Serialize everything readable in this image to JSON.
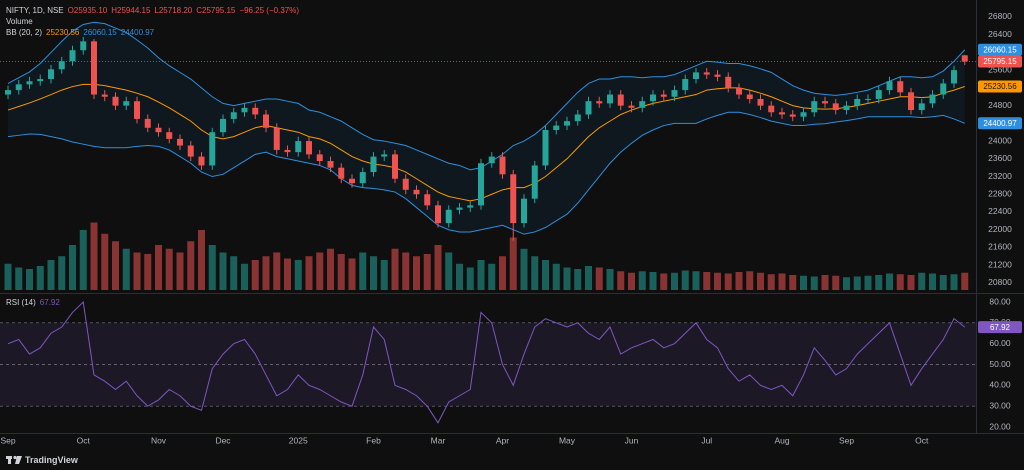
{
  "header": {
    "symbol": "NIFTY, 1D, NSE",
    "open": "O25935.10",
    "high": "H25944.15",
    "low": "L25718.20",
    "close": "C25795.15",
    "change": "−96.25 (−0.37%)",
    "footer": "TradingView"
  },
  "chart_data": {
    "type": "candlestick",
    "up_color": "#26a69a",
    "down_color": "#ef5350",
    "grid": false,
    "ylim": [
      20640,
      27070
    ],
    "yticks": [
      20800,
      21200,
      21600,
      22000,
      22400,
      22800,
      23200,
      23600,
      24000,
      24400,
      24800,
      25200,
      25600,
      26000,
      26400,
      26800
    ],
    "categories": [
      "Sep",
      null,
      null,
      null,
      null,
      null,
      null,
      "Oct",
      null,
      null,
      null,
      null,
      null,
      null,
      "Nov",
      null,
      null,
      null,
      null,
      null,
      "Dec",
      null,
      null,
      null,
      null,
      null,
      null,
      "2025",
      null,
      null,
      null,
      null,
      null,
      null,
      "Feb",
      null,
      null,
      null,
      null,
      null,
      "Mar",
      null,
      null,
      null,
      null,
      null,
      "Apr",
      null,
      null,
      null,
      null,
      null,
      "May",
      null,
      null,
      null,
      null,
      null,
      "Jun",
      null,
      null,
      null,
      null,
      null,
      null,
      "Jul",
      null,
      null,
      null,
      null,
      null,
      null,
      "Aug",
      null,
      null,
      null,
      null,
      null,
      "Sep",
      null,
      null,
      null,
      null,
      null,
      null,
      "Oct",
      null,
      null,
      null,
      null
    ],
    "open": [
      25050,
      25150,
      25280,
      25350,
      25400,
      25620,
      25800,
      26050,
      26250,
      25050,
      25000,
      24800,
      24900,
      24500,
      24300,
      24200,
      24050,
      23900,
      23650,
      23450,
      24200,
      24500,
      24650,
      24750,
      24600,
      24300,
      23800,
      23750,
      24000,
      23700,
      23550,
      23400,
      23150,
      23050,
      23300,
      23650,
      23700,
      23150,
      22900,
      22800,
      22550,
      22150,
      22450,
      22500,
      22550,
      23500,
      23650,
      23250,
      22150,
      22700,
      23450,
      24250,
      24350,
      24450,
      24600,
      24900,
      24850,
      25050,
      24800,
      24750,
      24900,
      25050,
      25000,
      25150,
      25400,
      25550,
      25500,
      25450,
      25200,
      25050,
      24950,
      24800,
      24650,
      24600,
      24550,
      24650,
      24900,
      24850,
      24700,
      24800,
      24950,
      24950,
      25150,
      25350,
      25100,
      24700,
      24850,
      25050,
      25300,
      25935.1
    ],
    "high": [
      25250,
      25380,
      25450,
      25500,
      25720,
      25900,
      26150,
      26350,
      26300,
      25150,
      25100,
      25000,
      25000,
      24600,
      24400,
      24300,
      24150,
      24000,
      23750,
      24300,
      24600,
      24750,
      24850,
      24850,
      24700,
      24400,
      23900,
      24100,
      24100,
      23800,
      23650,
      23500,
      23250,
      23400,
      23750,
      23800,
      23800,
      23250,
      23000,
      22900,
      22650,
      22550,
      22600,
      22650,
      23600,
      23750,
      23750,
      23350,
      22800,
      23550,
      24350,
      24450,
      24550,
      24700,
      25000,
      25000,
      25150,
      25150,
      24900,
      25000,
      25150,
      25150,
      25250,
      25500,
      25650,
      25650,
      25600,
      25550,
      25300,
      25150,
      25050,
      24900,
      24750,
      24700,
      24750,
      25000,
      25000,
      24950,
      24900,
      25050,
      25050,
      25250,
      25450,
      25450,
      25200,
      24950,
      25150,
      25400,
      25700,
      25944.15
    ],
    "low": [
      24950,
      25050,
      25180,
      25250,
      25300,
      25520,
      25700,
      25950,
      24950,
      24900,
      24700,
      24700,
      24400,
      24200,
      24100,
      23950,
      23800,
      23550,
      23350,
      23350,
      24100,
      24400,
      24550,
      24500,
      24200,
      23700,
      23650,
      23650,
      23600,
      23450,
      23300,
      23050,
      22950,
      22950,
      23200,
      23550,
      23050,
      22800,
      22700,
      22450,
      22050,
      22050,
      22350,
      22400,
      22450,
      23400,
      23150,
      21750,
      22050,
      22600,
      23350,
      24150,
      24250,
      24350,
      24500,
      24750,
      24750,
      24700,
      24650,
      24650,
      24800,
      24900,
      24900,
      25050,
      25300,
      25400,
      25350,
      25100,
      24950,
      24850,
      24700,
      24550,
      24500,
      24450,
      24450,
      24550,
      24750,
      24600,
      24600,
      24700,
      24850,
      24850,
      25050,
      25000,
      24600,
      24600,
      24750,
      24950,
      25200,
      25718.2
    ],
    "close": [
      25150,
      25280,
      25350,
      25400,
      25620,
      25800,
      26050,
      26250,
      25050,
      25000,
      24800,
      24900,
      24500,
      24300,
      24200,
      24050,
      23900,
      23650,
      23450,
      24200,
      24500,
      24650,
      24750,
      24600,
      24300,
      23800,
      23750,
      24000,
      23700,
      23550,
      23400,
      23150,
      23050,
      23300,
      23650,
      23700,
      23150,
      22900,
      22800,
      22550,
      22150,
      22450,
      22500,
      22550,
      23500,
      23650,
      23250,
      22150,
      22700,
      23450,
      24250,
      24350,
      24450,
      24600,
      24900,
      24850,
      25050,
      24800,
      24750,
      24900,
      25050,
      25000,
      25150,
      25400,
      25550,
      25500,
      25450,
      25200,
      25050,
      24950,
      24800,
      24650,
      24600,
      24550,
      24650,
      24900,
      24850,
      24700,
      24800,
      24950,
      24950,
      25150,
      25350,
      25100,
      24700,
      24850,
      25050,
      25300,
      25600,
      25795.15
    ],
    "bb": {
      "label": "BB (20, 2)",
      "fill": "rgba(33,150,243,0.07)",
      "basis": {
        "color": "#ff9800",
        "values": [
          24700,
          24780,
          24860,
          24950,
          25050,
          25150,
          25230,
          25280,
          25280,
          25250,
          25200,
          25150,
          25080,
          25000,
          24880,
          24750,
          24600,
          24450,
          24250,
          24100,
          24050,
          24100,
          24200,
          24300,
          24350,
          24300,
          24250,
          24200,
          24100,
          24050,
          23950,
          23800,
          23650,
          23550,
          23480,
          23450,
          23400,
          23300,
          23150,
          23000,
          22850,
          22750,
          22700,
          22650,
          22700,
          22800,
          22900,
          22950,
          22950,
          23050,
          23200,
          23400,
          23600,
          23850,
          24100,
          24300,
          24450,
          24600,
          24700,
          24780,
          24850,
          24900,
          24950,
          25000,
          25050,
          25150,
          25180,
          25200,
          25200,
          25150,
          25080,
          25000,
          24900,
          24800,
          24750,
          24730,
          24720,
          24730,
          24760,
          24800,
          24850,
          24900,
          24950,
          25000,
          25000,
          24980,
          25000,
          25080,
          25150,
          25230.56
        ]
      },
      "upper": {
        "color": "#2e8fe0",
        "values": [
          25300,
          25430,
          25560,
          25750,
          26000,
          26250,
          26480,
          26630,
          26680,
          26650,
          26550,
          26450,
          26280,
          26100,
          25880,
          25700,
          25550,
          25400,
          25200,
          25000,
          24850,
          24800,
          24850,
          24900,
          24950,
          24950,
          24900,
          24850,
          24700,
          24650,
          24550,
          24450,
          24300,
          24150,
          24030,
          24000,
          23950,
          23900,
          23800,
          23700,
          23600,
          23500,
          23450,
          23350,
          23400,
          23550,
          23700,
          23900,
          24000,
          24150,
          24350,
          24600,
          24850,
          25100,
          25300,
          25400,
          25400,
          25450,
          25450,
          25430,
          25450,
          25450,
          25500,
          25600,
          25700,
          25800,
          25780,
          25750,
          25750,
          25700,
          25630,
          25550,
          25400,
          25250,
          25150,
          25080,
          25050,
          25030,
          25060,
          25100,
          25150,
          25250,
          25350,
          25450,
          25450,
          25430,
          25450,
          25580,
          25800,
          26060.15
        ]
      },
      "lower": {
        "color": "#2e8fe0",
        "values": [
          24100,
          24130,
          24160,
          24150,
          24100,
          24050,
          23980,
          23930,
          23880,
          23850,
          23850,
          23850,
          23880,
          23900,
          23880,
          23800,
          23650,
          23500,
          23300,
          23200,
          23250,
          23400,
          23550,
          23700,
          23750,
          23650,
          23600,
          23550,
          23500,
          23450,
          23350,
          23150,
          23000,
          22950,
          22930,
          22900,
          22850,
          22700,
          22500,
          22300,
          22100,
          22000,
          21950,
          21950,
          22000,
          22050,
          22100,
          22000,
          21900,
          21950,
          22050,
          22200,
          22350,
          22600,
          22900,
          23200,
          23500,
          23750,
          23950,
          24130,
          24250,
          24350,
          24400,
          24400,
          24400,
          24500,
          24580,
          24650,
          24650,
          24600,
          24530,
          24450,
          24400,
          24350,
          24350,
          24380,
          24390,
          24430,
          24460,
          24500,
          24550,
          24550,
          24550,
          24550,
          24550,
          24530,
          24550,
          24580,
          24500,
          24400.97
        ]
      }
    },
    "volume": {
      "label": "Volume",
      "ylim": [
        0,
        1000
      ],
      "values": [
        350,
        300,
        280,
        320,
        400,
        450,
        600,
        800,
        900,
        750,
        650,
        550,
        500,
        480,
        600,
        550,
        500,
        650,
        800,
        600,
        500,
        450,
        350,
        400,
        450,
        500,
        420,
        400,
        450,
        500,
        550,
        480,
        420,
        500,
        450,
        400,
        550,
        500,
        450,
        480,
        600,
        500,
        350,
        300,
        400,
        350,
        450,
        700,
        550,
        450,
        400,
        350,
        300,
        280,
        320,
        300,
        280,
        250,
        230,
        250,
        240,
        220,
        230,
        260,
        250,
        240,
        230,
        220,
        240,
        250,
        230,
        210,
        220,
        200,
        190,
        180,
        200,
        190,
        170,
        180,
        190,
        200,
        220,
        210,
        200,
        230,
        220,
        200,
        210,
        230
      ]
    },
    "rsi": {
      "label": "RSI (14)",
      "color": "#7e57c2",
      "band_fill": "rgba(126,87,194,0.12)",
      "ylim": [
        17.6,
        82.4
      ],
      "levels": [
        70,
        50,
        30
      ],
      "yticks": [
        {
          "value": 80,
          "label": "80.00"
        },
        {
          "value": 70,
          "label": "70.00"
        },
        {
          "value": 60,
          "label": "60.00"
        },
        {
          "value": 50,
          "label": "50.00"
        },
        {
          "value": 40,
          "label": "40.00"
        },
        {
          "value": 30,
          "label": "30.00"
        },
        {
          "value": 20,
          "label": "20.00"
        }
      ],
      "values": [
        60,
        62,
        55,
        58,
        65,
        68,
        75,
        80,
        45,
        42,
        38,
        42,
        35,
        30,
        33,
        38,
        35,
        30,
        28,
        48,
        55,
        60,
        62,
        55,
        45,
        35,
        38,
        45,
        40,
        38,
        35,
        32,
        30,
        45,
        68,
        62,
        40,
        38,
        35,
        30,
        22,
        32,
        35,
        38,
        75,
        70,
        50,
        40,
        55,
        68,
        72,
        70,
        68,
        70,
        65,
        62,
        68,
        55,
        58,
        60,
        62,
        58,
        60,
        65,
        70,
        62,
        58,
        48,
        42,
        45,
        40,
        38,
        40,
        35,
        45,
        58,
        52,
        45,
        48,
        55,
        60,
        65,
        70,
        55,
        40,
        48,
        55,
        62,
        72,
        67.92
      ]
    }
  }
}
